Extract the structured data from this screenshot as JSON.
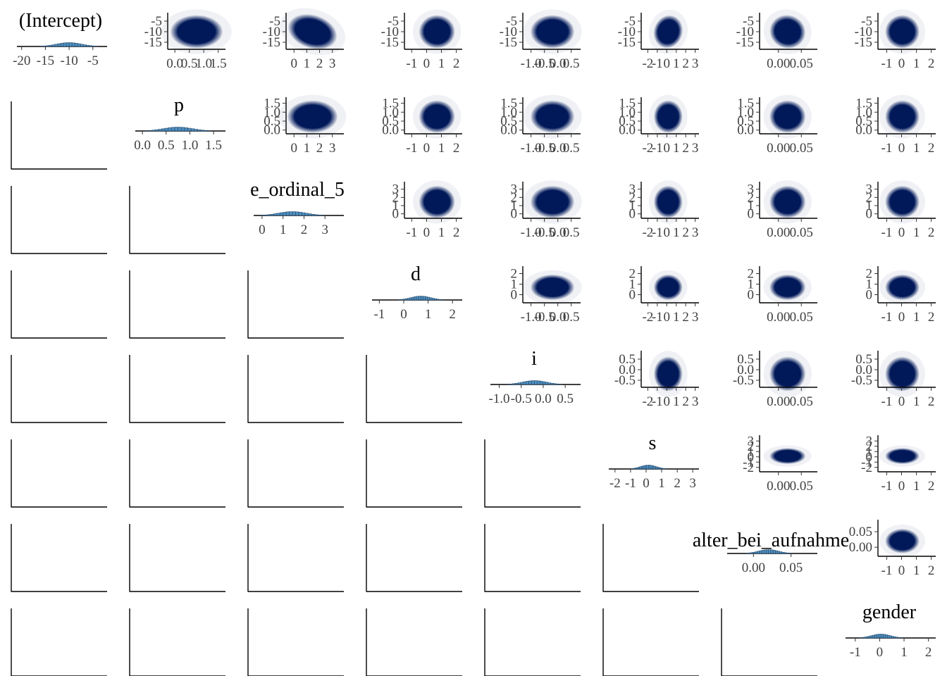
{
  "chart_data": {
    "type": "pairs",
    "variables": [
      {
        "label": "(Intercept)",
        "ticks": [
          {
            "v": -20,
            "t": "-20"
          },
          {
            "v": -15,
            "t": "-15"
          },
          {
            "v": -10,
            "t": "-10"
          },
          {
            "v": -5,
            "t": "-5"
          }
        ],
        "range": [
          -21,
          -2
        ],
        "hist": {
          "mean": -10,
          "sd": 2.6
        },
        "ylim_ticks": [
          {
            "v": -5,
            "t": "-5"
          },
          {
            "v": -10,
            "t": "-10"
          },
          {
            "v": -15,
            "t": "-15"
          }
        ],
        "yrange": [
          -17,
          -3
        ]
      },
      {
        "label": "p",
        "ticks": [
          {
            "v": 0,
            "t": "0.0"
          },
          {
            "v": 0.5,
            "t": "0.5"
          },
          {
            "v": 1.0,
            "t": "1.0"
          },
          {
            "v": 1.5,
            "t": "1.5"
          }
        ],
        "range": [
          -0.15,
          1.75
        ],
        "hist": {
          "mean": 0.75,
          "sd": 0.3
        },
        "ylim_ticks": [
          {
            "v": 1.5,
            "t": "1.5"
          },
          {
            "v": 1.0,
            "t": "1.0"
          },
          {
            "v": 0.5,
            "t": "0.5"
          },
          {
            "v": 0.0,
            "t": "0.0"
          }
        ],
        "yrange": [
          -0.05,
          1.6
        ]
      },
      {
        "label": "e_ordinal_5",
        "ticks": [
          {
            "v": 0,
            "t": "0"
          },
          {
            "v": 1,
            "t": "1"
          },
          {
            "v": 2,
            "t": "2"
          },
          {
            "v": 3,
            "t": "3"
          }
        ],
        "range": [
          -0.4,
          3.9
        ],
        "hist": {
          "mean": 1.45,
          "sd": 0.65
        },
        "ylim_ticks": [
          {
            "v": 3,
            "t": "3"
          },
          {
            "v": 2,
            "t": "2"
          },
          {
            "v": 1,
            "t": "1"
          },
          {
            "v": 0,
            "t": "0"
          }
        ],
        "yrange": [
          -0.2,
          3.4
        ]
      },
      {
        "label": "d",
        "ticks": [
          {
            "v": -1,
            "t": "-1"
          },
          {
            "v": 0,
            "t": "0"
          },
          {
            "v": 1,
            "t": "1"
          },
          {
            "v": 2,
            "t": "2"
          }
        ],
        "range": [
          -1.3,
          2.4
        ],
        "hist": {
          "mean": 0.7,
          "sd": 0.4
        },
        "ylim_ticks": [
          {
            "v": 2,
            "t": "2"
          },
          {
            "v": 1,
            "t": "1"
          },
          {
            "v": 0,
            "t": "0"
          }
        ],
        "yrange": [
          -0.5,
          2.3
        ]
      },
      {
        "label": "i",
        "ticks": [
          {
            "v": -1.0,
            "t": "-1.0"
          },
          {
            "v": -0.5,
            "t": "-0.5"
          },
          {
            "v": 0.0,
            "t": "0.0"
          },
          {
            "v": 0.5,
            "t": "0.5"
          }
        ],
        "range": [
          -1.2,
          0.85
        ],
        "hist": {
          "mean": -0.2,
          "sd": 0.27
        },
        "ylim_ticks": [
          {
            "v": 0.5,
            "t": "0.5"
          },
          {
            "v": 0.0,
            "t": "0.0"
          },
          {
            "v": -0.5,
            "t": "-0.5"
          }
        ],
        "yrange": [
          -0.7,
          0.7
        ]
      },
      {
        "label": "s",
        "ticks": [
          {
            "v": -2,
            "t": "-2"
          },
          {
            "v": -1,
            "t": "-1"
          },
          {
            "v": 0,
            "t": "0"
          },
          {
            "v": 1,
            "t": "1"
          },
          {
            "v": 2,
            "t": "2"
          },
          {
            "v": 3,
            "t": "3"
          }
        ],
        "range": [
          -2.4,
          3.4
        ],
        "hist": {
          "mean": 0.15,
          "sd": 0.5
        },
        "ylim_ticks": [
          {
            "v": 3,
            "t": "3"
          },
          {
            "v": 2,
            "t": "2"
          },
          {
            "v": 1,
            "t": "1"
          },
          {
            "v": 0,
            "t": "0"
          },
          {
            "v": -1,
            "t": "-1"
          },
          {
            "v": -2,
            "t": "-2"
          }
        ],
        "yrange": [
          -2.3,
          3.3
        ]
      },
      {
        "label": "alter_bei_aufnahme",
        "ticks": [
          {
            "v": 0.0,
            "t": "0.00"
          },
          {
            "v": 0.05,
            "t": "0.05"
          }
        ],
        "range": [
          -0.035,
          0.085
        ],
        "hist": {
          "mean": 0.02,
          "sd": 0.013
        },
        "ylim_ticks": [
          {
            "v": 0.05,
            "t": "0.05"
          },
          {
            "v": 0.0,
            "t": "0.00"
          }
        ],
        "yrange": [
          -0.02,
          0.075
        ]
      },
      {
        "label": "gender",
        "ticks": [
          {
            "v": -1,
            "t": "-1"
          },
          {
            "v": 0,
            "t": "0"
          },
          {
            "v": 1,
            "t": "1"
          },
          {
            "v": 2,
            "t": "2"
          }
        ],
        "range": [
          -1.4,
          2.3
        ],
        "hist": {
          "mean": 0.05,
          "sd": 0.38
        },
        "ylim_ticks": [],
        "yrange": [
          -1.2,
          1.4
        ]
      }
    ],
    "diagonal": "histogram",
    "upper": "scatter",
    "lower": "empty",
    "colors": {
      "scatter": "#011959",
      "hist_fill": "#4f8fbf",
      "hist_edge": "#1b3a5a"
    }
  }
}
